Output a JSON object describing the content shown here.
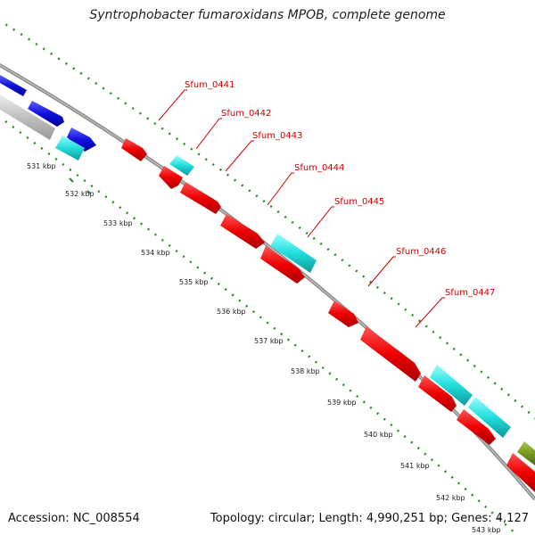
{
  "title": "Syntrophobacter fumaroxidans MPOB, complete genome",
  "footer": {
    "accession": "Accession: NC_008554",
    "summary": "Topology: circular; Length: 4,990,251 bp; Genes: 4,127"
  },
  "colors": {
    "backbone": "#808080",
    "ticks": "#2a8a2a",
    "label": "#cc0000",
    "red": "#ee0000",
    "cyan": "#22dddd",
    "blue": "#1010dd",
    "grey": "#c0c0c0",
    "olive": "#779922"
  },
  "kbp_labels": [
    "531 kbp",
    "532 kbp",
    "533 kbp",
    "534 kbp",
    "535 kbp",
    "536 kbp",
    "537 kbp",
    "538 kbp",
    "539 kbp",
    "540 kbp",
    "541 kbp",
    "542 kbp",
    "543 kbp"
  ],
  "gene_labels": [
    "Sfum_0441",
    "Sfum_0442",
    "Sfum_0443",
    "Sfum_0444",
    "Sfum_0445",
    "Sfum_0446",
    "Sfum_0447"
  ]
}
